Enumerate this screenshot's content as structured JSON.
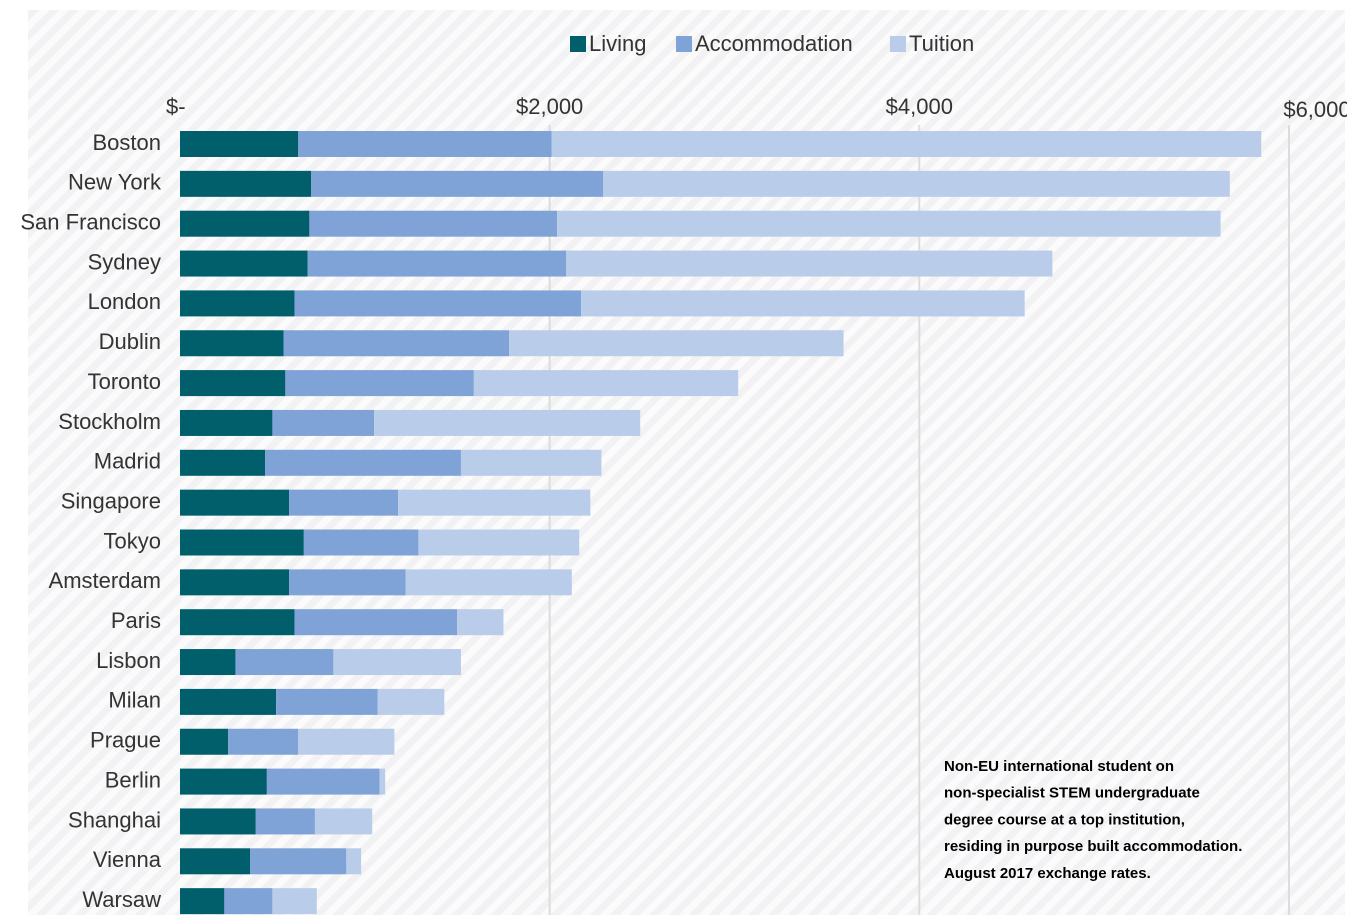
{
  "chart_data": {
    "type": "stacked-bar-horizontal",
    "categories": [
      "Boston",
      "New York",
      "San Francisco",
      "Sydney",
      "London",
      "Dublin",
      "Toronto",
      "Stockholm",
      "Madrid",
      "Singapore",
      "Tokyo",
      "Amsterdam",
      "Paris",
      "Lisbon",
      "Milan",
      "Prague",
      "Berlin",
      "Shanghai",
      "Vienna",
      "Warsaw"
    ],
    "series": [
      {
        "name": "Living",
        "color": "#005f6b",
        "values": [
          640,
          710,
          700,
          690,
          620,
          560,
          570,
          500,
          460,
          590,
          670,
          590,
          620,
          300,
          520,
          260,
          470,
          410,
          380,
          240
        ]
      },
      {
        "name": "Accommodation",
        "color": "#7fa3d6",
        "values": [
          1370,
          1580,
          1340,
          1400,
          1550,
          1220,
          1020,
          550,
          1060,
          590,
          620,
          630,
          880,
          530,
          550,
          380,
          610,
          320,
          520,
          260
        ]
      },
      {
        "name": "Tuition",
        "color": "#b9cdea",
        "values": [
          3840,
          3390,
          3590,
          2630,
          2400,
          1810,
          1430,
          1440,
          760,
          1040,
          870,
          900,
          250,
          690,
          360,
          520,
          30,
          310,
          80,
          240
        ]
      }
    ],
    "xlim": [
      0,
      6300
    ],
    "xticks": [
      {
        "value": 0,
        "label": "$-"
      },
      {
        "value": 2000,
        "label": "$2,000"
      },
      {
        "value": 4000,
        "label": "$4,000"
      },
      {
        "value": 6000,
        "label": "$6,000"
      }
    ],
    "grid": true,
    "annotation": [
      "Non-EU international student on",
      "non-specialist STEM undergraduate",
      "degree course at a top institution,",
      "residing in purpose built accommodation.",
      "August 2017 exchange rates."
    ]
  }
}
